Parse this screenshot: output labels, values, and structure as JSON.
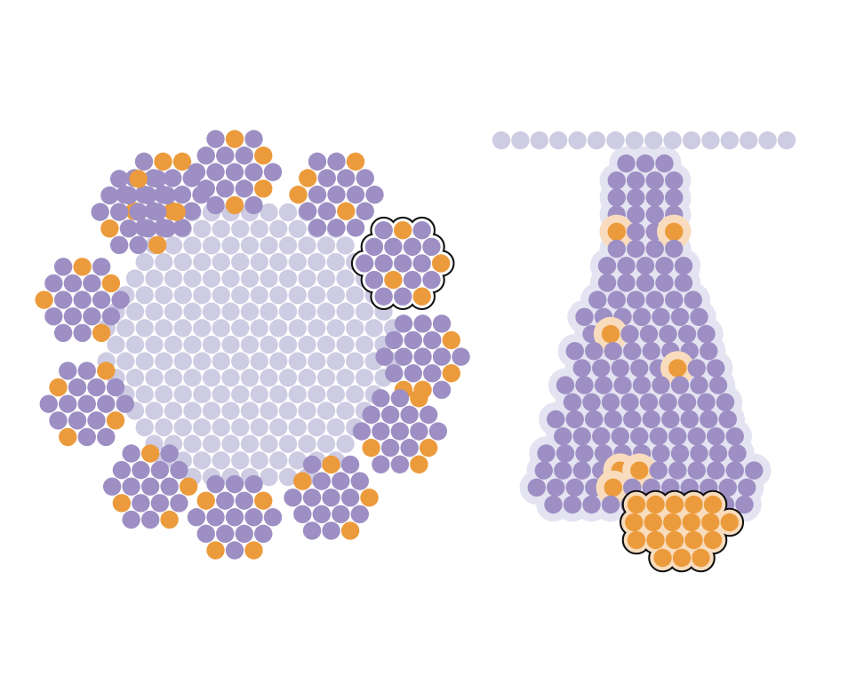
{
  "colors": {
    "background": "#ffffff",
    "light_lavender": "#cdcce3",
    "halo_lavender": "#e4e3f1",
    "purple": "#9d8fc4",
    "orange": "#ec9b3c",
    "peach_halo": "#f9dcbd",
    "outline": "#111111"
  },
  "panels": [
    {
      "id": "left-cluster",
      "description_shape": "round core of light particles with twelve protruding purple/orange clusters; one cluster outlined",
      "core_particle_color": "light_lavender",
      "cluster_count": 12,
      "highlighted_cluster_index": 3
    },
    {
      "id": "right-column",
      "description_shape": "horizontal strand of light particles above a widening purple column with scattered orange particles and an outlined orange group at the base",
      "strand_particle_color": "light_lavender",
      "column_particle_color": "purple",
      "accent_particle_color": "orange"
    }
  ]
}
